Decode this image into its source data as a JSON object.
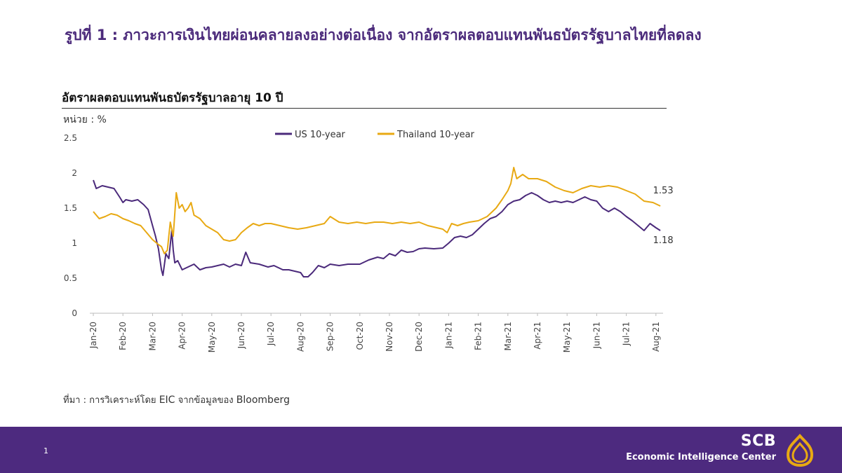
{
  "slide": {
    "title": "รูปที่ 1 : ภาวะการเงินไทยผ่อนคลายลงอย่างต่อเนื่อง  จากอัตราผลตอบแทนพันธบัตรรัฐบาลไทยที่ลดลง",
    "source_prefix": "ที่มา : การวิเคราะห์โดย",
    "source_eic": "EIC",
    "source_mid": "จากข้อมูลของ",
    "source_bloomberg": "Bloomberg",
    "page_number": "1",
    "brand_name": "SCB",
    "brand_sub": "Economic Intelligence Center",
    "brand_color": "#4d2a7f",
    "logo_icon": "scb-lotus-logo-icon"
  },
  "chart_data": {
    "type": "line",
    "title": "อัตราผลตอบแทนพันธบัตรรัฐบาลอายุ  10 ปี",
    "unit_label": "หน่วย : %",
    "ylim": [
      0,
      2.5
    ],
    "yticks": [
      "0",
      "0.5",
      "1",
      "1.5",
      "2",
      "2.5"
    ],
    "x_ticks": [
      "Jan-20",
      "Feb-20",
      "Mar-20",
      "Apr-20",
      "May-20",
      "Jun-20",
      "Jul-20",
      "Aug-20",
      "Sep-20",
      "Oct-20",
      "Nov-20",
      "Dec-20",
      "Jan-21",
      "Feb-21",
      "Mar-21",
      "Apr-21",
      "May-21",
      "Jun-21",
      "Jul-21",
      "Aug-21"
    ],
    "grid": false,
    "legend_position": "top-center",
    "x_unit": "months since Jan-20",
    "series": [
      {
        "name": "US 10-year",
        "color": "#4b2a7b",
        "end_label": "1.18",
        "points": [
          [
            0,
            1.9
          ],
          [
            0.1,
            1.78
          ],
          [
            0.3,
            1.82
          ],
          [
            0.5,
            1.8
          ],
          [
            0.7,
            1.78
          ],
          [
            0.9,
            1.65
          ],
          [
            1.0,
            1.58
          ],
          [
            1.1,
            1.62
          ],
          [
            1.3,
            1.6
          ],
          [
            1.5,
            1.62
          ],
          [
            1.7,
            1.55
          ],
          [
            1.85,
            1.48
          ],
          [
            2.0,
            1.25
          ],
          [
            2.1,
            1.1
          ],
          [
            2.2,
            0.92
          ],
          [
            2.3,
            0.62
          ],
          [
            2.35,
            0.54
          ],
          [
            2.45,
            0.85
          ],
          [
            2.55,
            0.78
          ],
          [
            2.65,
            1.18
          ],
          [
            2.7,
            0.9
          ],
          [
            2.75,
            0.72
          ],
          [
            2.85,
            0.75
          ],
          [
            3.0,
            0.62
          ],
          [
            3.2,
            0.66
          ],
          [
            3.4,
            0.7
          ],
          [
            3.6,
            0.62
          ],
          [
            3.8,
            0.65
          ],
          [
            4.0,
            0.66
          ],
          [
            4.2,
            0.68
          ],
          [
            4.4,
            0.7
          ],
          [
            4.6,
            0.66
          ],
          [
            4.8,
            0.7
          ],
          [
            5.0,
            0.68
          ],
          [
            5.15,
            0.87
          ],
          [
            5.3,
            0.72
          ],
          [
            5.6,
            0.7
          ],
          [
            5.9,
            0.66
          ],
          [
            6.1,
            0.68
          ],
          [
            6.4,
            0.62
          ],
          [
            6.6,
            0.62
          ],
          [
            6.8,
            0.6
          ],
          [
            7.0,
            0.58
          ],
          [
            7.1,
            0.52
          ],
          [
            7.25,
            0.52
          ],
          [
            7.4,
            0.58
          ],
          [
            7.6,
            0.68
          ],
          [
            7.8,
            0.65
          ],
          [
            8.0,
            0.7
          ],
          [
            8.3,
            0.68
          ],
          [
            8.6,
            0.7
          ],
          [
            9.0,
            0.7
          ],
          [
            9.3,
            0.76
          ],
          [
            9.6,
            0.8
          ],
          [
            9.8,
            0.78
          ],
          [
            10.0,
            0.85
          ],
          [
            10.2,
            0.82
          ],
          [
            10.4,
            0.9
          ],
          [
            10.6,
            0.87
          ],
          [
            10.8,
            0.88
          ],
          [
            11.0,
            0.92
          ],
          [
            11.2,
            0.93
          ],
          [
            11.5,
            0.92
          ],
          [
            11.8,
            0.93
          ],
          [
            12.0,
            1.0
          ],
          [
            12.2,
            1.08
          ],
          [
            12.4,
            1.1
          ],
          [
            12.6,
            1.08
          ],
          [
            12.8,
            1.12
          ],
          [
            13.0,
            1.2
          ],
          [
            13.2,
            1.28
          ],
          [
            13.4,
            1.35
          ],
          [
            13.6,
            1.38
          ],
          [
            13.8,
            1.45
          ],
          [
            14.0,
            1.55
          ],
          [
            14.2,
            1.6
          ],
          [
            14.4,
            1.62
          ],
          [
            14.6,
            1.68
          ],
          [
            14.8,
            1.72
          ],
          [
            15.0,
            1.68
          ],
          [
            15.2,
            1.62
          ],
          [
            15.4,
            1.58
          ],
          [
            15.6,
            1.6
          ],
          [
            15.8,
            1.58
          ],
          [
            16.0,
            1.6
          ],
          [
            16.2,
            1.58
          ],
          [
            16.4,
            1.62
          ],
          [
            16.6,
            1.66
          ],
          [
            16.8,
            1.62
          ],
          [
            17.0,
            1.6
          ],
          [
            17.2,
            1.5
          ],
          [
            17.4,
            1.45
          ],
          [
            17.6,
            1.5
          ],
          [
            17.8,
            1.45
          ],
          [
            18.0,
            1.38
          ],
          [
            18.2,
            1.32
          ],
          [
            18.4,
            1.25
          ],
          [
            18.6,
            1.18
          ],
          [
            18.8,
            1.28
          ],
          [
            19.0,
            1.22
          ],
          [
            19.15,
            1.18
          ]
        ]
      },
      {
        "name": "Thailand 10-year",
        "color": "#e8a913",
        "end_label": "1.53",
        "points": [
          [
            0,
            1.45
          ],
          [
            0.2,
            1.35
          ],
          [
            0.4,
            1.38
          ],
          [
            0.6,
            1.42
          ],
          [
            0.8,
            1.4
          ],
          [
            1.0,
            1.35
          ],
          [
            1.2,
            1.32
          ],
          [
            1.4,
            1.28
          ],
          [
            1.6,
            1.25
          ],
          [
            1.8,
            1.15
          ],
          [
            2.0,
            1.05
          ],
          [
            2.2,
            0.98
          ],
          [
            2.3,
            0.95
          ],
          [
            2.4,
            0.85
          ],
          [
            2.5,
            0.9
          ],
          [
            2.6,
            1.3
          ],
          [
            2.7,
            1.1
          ],
          [
            2.8,
            1.72
          ],
          [
            2.9,
            1.5
          ],
          [
            3.0,
            1.55
          ],
          [
            3.1,
            1.45
          ],
          [
            3.2,
            1.5
          ],
          [
            3.3,
            1.58
          ],
          [
            3.4,
            1.4
          ],
          [
            3.6,
            1.35
          ],
          [
            3.8,
            1.25
          ],
          [
            4.0,
            1.2
          ],
          [
            4.2,
            1.15
          ],
          [
            4.4,
            1.05
          ],
          [
            4.6,
            1.03
          ],
          [
            4.8,
            1.05
          ],
          [
            5.0,
            1.15
          ],
          [
            5.2,
            1.22
          ],
          [
            5.4,
            1.28
          ],
          [
            5.6,
            1.25
          ],
          [
            5.8,
            1.28
          ],
          [
            6.0,
            1.28
          ],
          [
            6.3,
            1.25
          ],
          [
            6.6,
            1.22
          ],
          [
            6.9,
            1.2
          ],
          [
            7.2,
            1.22
          ],
          [
            7.5,
            1.25
          ],
          [
            7.8,
            1.28
          ],
          [
            8.0,
            1.38
          ],
          [
            8.3,
            1.3
          ],
          [
            8.6,
            1.28
          ],
          [
            8.9,
            1.3
          ],
          [
            9.2,
            1.28
          ],
          [
            9.5,
            1.3
          ],
          [
            9.8,
            1.3
          ],
          [
            10.1,
            1.28
          ],
          [
            10.4,
            1.3
          ],
          [
            10.7,
            1.28
          ],
          [
            11.0,
            1.3
          ],
          [
            11.3,
            1.25
          ],
          [
            11.6,
            1.22
          ],
          [
            11.8,
            1.2
          ],
          [
            11.95,
            1.15
          ],
          [
            12.1,
            1.28
          ],
          [
            12.3,
            1.25
          ],
          [
            12.5,
            1.28
          ],
          [
            12.7,
            1.3
          ],
          [
            13.0,
            1.32
          ],
          [
            13.3,
            1.38
          ],
          [
            13.6,
            1.5
          ],
          [
            13.8,
            1.62
          ],
          [
            14.0,
            1.75
          ],
          [
            14.1,
            1.85
          ],
          [
            14.2,
            2.08
          ],
          [
            14.3,
            1.92
          ],
          [
            14.5,
            1.98
          ],
          [
            14.7,
            1.92
          ],
          [
            15.0,
            1.92
          ],
          [
            15.3,
            1.88
          ],
          [
            15.6,
            1.8
          ],
          [
            15.9,
            1.75
          ],
          [
            16.2,
            1.72
          ],
          [
            16.5,
            1.78
          ],
          [
            16.8,
            1.82
          ],
          [
            17.1,
            1.8
          ],
          [
            17.4,
            1.82
          ],
          [
            17.7,
            1.8
          ],
          [
            18.0,
            1.75
          ],
          [
            18.3,
            1.7
          ],
          [
            18.6,
            1.6
          ],
          [
            18.9,
            1.58
          ],
          [
            19.15,
            1.53
          ]
        ]
      }
    ]
  }
}
